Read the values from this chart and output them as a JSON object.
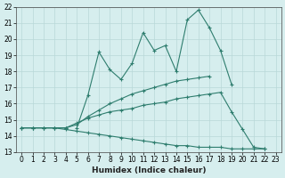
{
  "xlabel": "Humidex (Indice chaleur)",
  "x": [
    0,
    1,
    2,
    3,
    4,
    5,
    6,
    7,
    8,
    9,
    10,
    11,
    12,
    13,
    14,
    15,
    16,
    17,
    18,
    19,
    20,
    21,
    22,
    23
  ],
  "line1": [
    null,
    null,
    null,
    null,
    null,
    14.5,
    16.5,
    19.2,
    18.1,
    17.5,
    18.5,
    20.4,
    19.3,
    19.6,
    18.0,
    21.2,
    21.8,
    20.7,
    19.3,
    17.2,
    null,
    null,
    null,
    null
  ],
  "line2": [
    14.5,
    14.5,
    14.5,
    14.5,
    14.5,
    14.7,
    15.2,
    15.6,
    16.0,
    16.3,
    16.6,
    16.8,
    17.0,
    17.2,
    17.4,
    17.5,
    17.6,
    17.7,
    null,
    null,
    null,
    null,
    null,
    null
  ],
  "line3": [
    14.5,
    14.5,
    14.5,
    14.5,
    14.5,
    14.8,
    15.1,
    15.3,
    15.5,
    15.6,
    15.7,
    15.9,
    16.0,
    16.1,
    16.3,
    16.4,
    16.5,
    16.6,
    16.7,
    15.5,
    14.4,
    13.3,
    13.2,
    null
  ],
  "line4": [
    14.5,
    14.5,
    14.5,
    14.5,
    14.4,
    14.3,
    14.2,
    14.1,
    14.0,
    13.9,
    13.8,
    13.7,
    13.6,
    13.5,
    13.4,
    13.4,
    13.3,
    13.3,
    13.3,
    13.2,
    13.2,
    13.2,
    13.2,
    null
  ],
  "color": "#2e7d6e",
  "bg_color": "#d6eeee",
  "grid_color": "#b8d8d8",
  "ylim": [
    13,
    22
  ],
  "xlim_min": -0.5,
  "xlim_max": 23.5,
  "yticks": [
    13,
    14,
    15,
    16,
    17,
    18,
    19,
    20,
    21,
    22
  ],
  "xticks": [
    0,
    1,
    2,
    3,
    4,
    5,
    6,
    7,
    8,
    9,
    10,
    11,
    12,
    13,
    14,
    15,
    16,
    17,
    18,
    19,
    20,
    21,
    22,
    23
  ],
  "marker": "+",
  "markersize": 3,
  "linewidth": 0.8,
  "tick_fontsize": 5.5,
  "label_fontsize": 6.5
}
